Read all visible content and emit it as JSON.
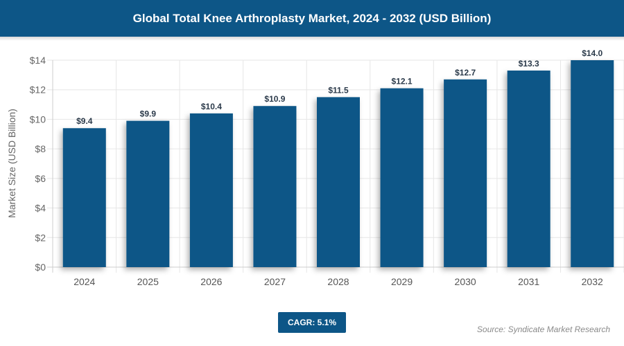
{
  "header": {
    "title": "Global Total Knee Arthroplasty Market, 2024 - 2032 (USD Billion)"
  },
  "chart_data": {
    "type": "bar",
    "categories": [
      "2024",
      "2025",
      "2026",
      "2027",
      "2028",
      "2029",
      "2030",
      "2031",
      "2032"
    ],
    "values": [
      9.4,
      9.9,
      10.4,
      10.9,
      11.5,
      12.1,
      12.7,
      13.3,
      14.0
    ],
    "data_labels": [
      "$9.4",
      "$9.9",
      "$10.4",
      "$10.9",
      "$11.5",
      "$12.1",
      "$12.7",
      "$13.3",
      "$14.0"
    ],
    "title": "",
    "xlabel": "",
    "ylabel": "Market Size (USD Billion)",
    "ylim": [
      0,
      14
    ],
    "yticks": [
      0,
      2,
      4,
      6,
      8,
      10,
      12,
      14
    ],
    "ytick_labels": [
      "$0",
      "$2",
      "$4",
      "$6",
      "$8",
      "$10",
      "$12",
      "$14"
    ],
    "grid": true,
    "bar_color": "#0d5687"
  },
  "footer": {
    "cagr": "CAGR: 5.1%",
    "source": "Source: Syndicate Market Research"
  }
}
